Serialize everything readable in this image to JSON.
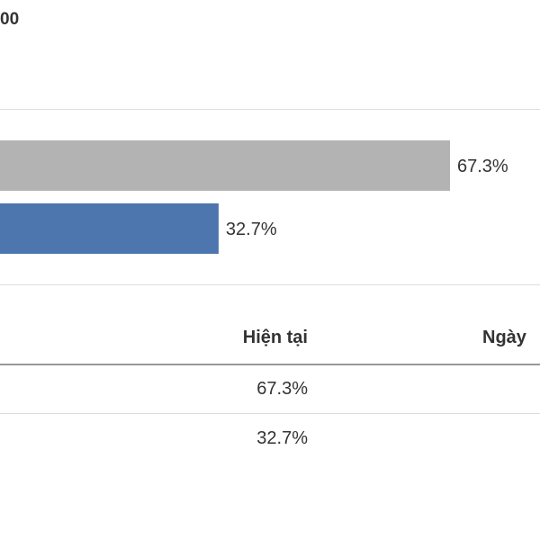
{
  "header": {
    "value_text": "00"
  },
  "chart_data": {
    "type": "bar",
    "orientation": "horizontal",
    "categories": [
      "",
      ""
    ],
    "values": [
      67.3,
      32.7
    ],
    "value_labels": [
      "67.3%",
      "32.7%"
    ],
    "colors": [
      "#b3b3b3",
      "#4e76ae"
    ],
    "title": "",
    "xlabel": "",
    "ylabel": "",
    "xlim": [
      0,
      100
    ],
    "grid": false,
    "legend": "none"
  },
  "table": {
    "headers": {
      "current": "Hiện tại",
      "date": "Ngày"
    },
    "rows": [
      {
        "current": "67.3%"
      },
      {
        "current": "32.7%"
      }
    ]
  }
}
